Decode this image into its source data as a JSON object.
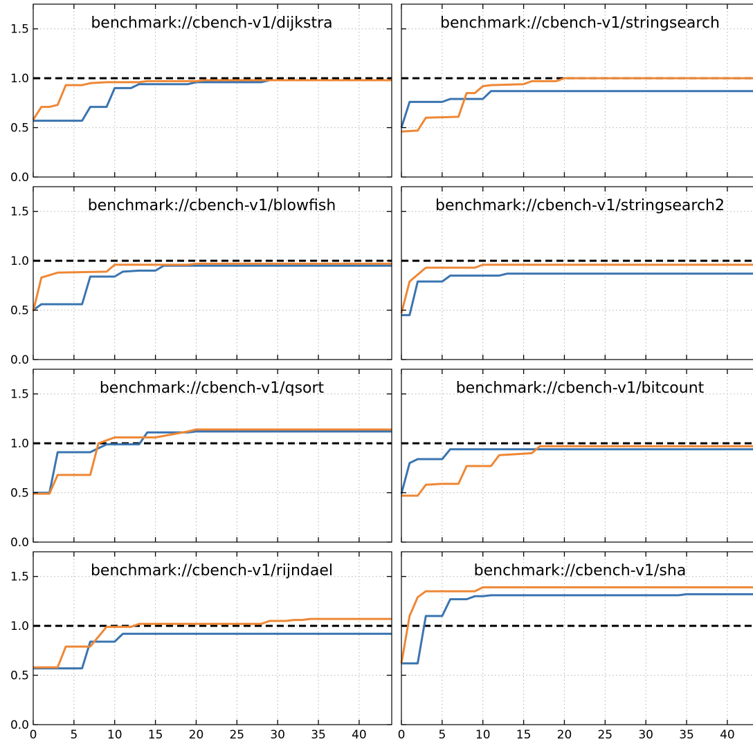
{
  "chart_data": {
    "type": "line",
    "layout": {
      "rows": 4,
      "cols": 2
    },
    "xlim": [
      0,
      44
    ],
    "ylim": [
      0,
      1.75
    ],
    "xticks": [
      0,
      5,
      10,
      15,
      20,
      25,
      30,
      35,
      40
    ],
    "yticks": [
      0.0,
      0.5,
      1.0,
      1.5
    ],
    "xtick_labels": [
      "0",
      "5",
      "10",
      "15",
      "20",
      "25",
      "30",
      "35",
      "40"
    ],
    "ytick_labels": [
      "0.0",
      "0.5",
      "1.0",
      "1.5"
    ],
    "grid": true,
    "reference_line": {
      "y": 1.0,
      "style": "dashed",
      "color": "#000000"
    },
    "series_colors": [
      "#3a74b0",
      "#ee8735"
    ],
    "panels": [
      {
        "title": "benchmark://cbench-v1/dijkstra",
        "series": [
          {
            "x": [
              0,
              6,
              7,
              9,
              10,
              12,
              13,
              19,
              20,
              28,
              29,
              44
            ],
            "y": [
              0.57,
              0.57,
              0.71,
              0.71,
              0.9,
              0.9,
              0.94,
              0.94,
              0.96,
              0.96,
              0.98,
              0.98
            ]
          },
          {
            "x": [
              0,
              1,
              2,
              3,
              4,
              6,
              7,
              9,
              10,
              13,
              14,
              20,
              21,
              44
            ],
            "y": [
              0.58,
              0.71,
              0.71,
              0.73,
              0.93,
              0.93,
              0.95,
              0.96,
              0.96,
              0.96,
              0.97,
              0.97,
              0.98,
              0.98
            ]
          }
        ]
      },
      {
        "title": "benchmark://cbench-v1/stringsearch",
        "series": [
          {
            "x": [
              0,
              1,
              5,
              6,
              10,
              11,
              44
            ],
            "y": [
              0.5,
              0.76,
              0.76,
              0.79,
              0.79,
              0.87,
              0.87
            ]
          },
          {
            "x": [
              0,
              2,
              3,
              7,
              8,
              9,
              10,
              11,
              15,
              16,
              19,
              20,
              44
            ],
            "y": [
              0.46,
              0.47,
              0.6,
              0.61,
              0.85,
              0.85,
              0.92,
              0.93,
              0.94,
              0.97,
              0.97,
              1.0,
              1.0
            ]
          }
        ]
      },
      {
        "title": "benchmark://cbench-v1/blowfish",
        "series": [
          {
            "x": [
              0,
              1,
              6,
              7,
              10,
              11,
              13,
              15,
              16,
              44
            ],
            "y": [
              0.5,
              0.56,
              0.56,
              0.84,
              0.84,
              0.89,
              0.9,
              0.9,
              0.95,
              0.95
            ]
          },
          {
            "x": [
              0,
              1,
              3,
              9,
              10,
              19,
              20,
              44
            ],
            "y": [
              0.49,
              0.83,
              0.88,
              0.89,
              0.96,
              0.96,
              0.97,
              0.97
            ]
          }
        ]
      },
      {
        "title": "benchmark://cbench-v1/stringsearch2",
        "series": [
          {
            "x": [
              0,
              1,
              2,
              5,
              6,
              12,
              13,
              44
            ],
            "y": [
              0.45,
              0.45,
              0.79,
              0.79,
              0.85,
              0.85,
              0.87,
              0.87
            ]
          },
          {
            "x": [
              0,
              1,
              3,
              9,
              10,
              44
            ],
            "y": [
              0.47,
              0.79,
              0.93,
              0.93,
              0.96,
              0.96
            ]
          }
        ]
      },
      {
        "title": "benchmark://cbench-v1/qsort",
        "series": [
          {
            "x": [
              0,
              2,
              3,
              7,
              9,
              13,
              14,
              19,
              20,
              44
            ],
            "y": [
              0.5,
              0.5,
              0.91,
              0.91,
              0.99,
              0.99,
              1.11,
              1.11,
              1.12,
              1.12
            ]
          },
          {
            "x": [
              0,
              2,
              3,
              7,
              8,
              10,
              15,
              19,
              20,
              44
            ],
            "y": [
              0.49,
              0.49,
              0.68,
              0.68,
              1.0,
              1.06,
              1.06,
              1.12,
              1.14,
              1.14
            ]
          }
        ]
      },
      {
        "title": "benchmark://cbench-v1/bitcount",
        "series": [
          {
            "x": [
              0,
              1,
              2,
              5,
              6,
              44
            ],
            "y": [
              0.49,
              0.8,
              0.84,
              0.84,
              0.94,
              0.94
            ]
          },
          {
            "x": [
              0,
              2,
              3,
              5,
              7,
              8,
              11,
              12,
              14,
              16,
              17,
              44
            ],
            "y": [
              0.47,
              0.47,
              0.58,
              0.59,
              0.59,
              0.77,
              0.77,
              0.88,
              0.89,
              0.9,
              0.97,
              0.97
            ]
          }
        ]
      },
      {
        "title": "benchmark://cbench-v1/rijndael",
        "series": [
          {
            "x": [
              0,
              6,
              7,
              10,
              11,
              44
            ],
            "y": [
              0.57,
              0.57,
              0.84,
              0.84,
              0.92,
              0.92
            ]
          },
          {
            "x": [
              0,
              3,
              4,
              7,
              9,
              12,
              13,
              28,
              29,
              31,
              32,
              33,
              34,
              44
            ],
            "y": [
              0.58,
              0.58,
              0.79,
              0.79,
              0.99,
              0.99,
              1.02,
              1.02,
              1.05,
              1.05,
              1.06,
              1.06,
              1.07,
              1.07
            ]
          }
        ]
      },
      {
        "title": "benchmark://cbench-v1/sha",
        "series": [
          {
            "x": [
              0,
              2,
              3,
              5,
              6,
              8,
              9,
              10,
              11,
              34,
              35,
              44
            ],
            "y": [
              0.62,
              0.62,
              1.1,
              1.1,
              1.27,
              1.27,
              1.3,
              1.3,
              1.31,
              1.31,
              1.32,
              1.32
            ]
          },
          {
            "x": [
              0,
              1,
              2,
              3,
              9,
              10,
              44
            ],
            "y": [
              0.62,
              1.1,
              1.29,
              1.35,
              1.35,
              1.39,
              1.39
            ]
          }
        ]
      }
    ]
  }
}
